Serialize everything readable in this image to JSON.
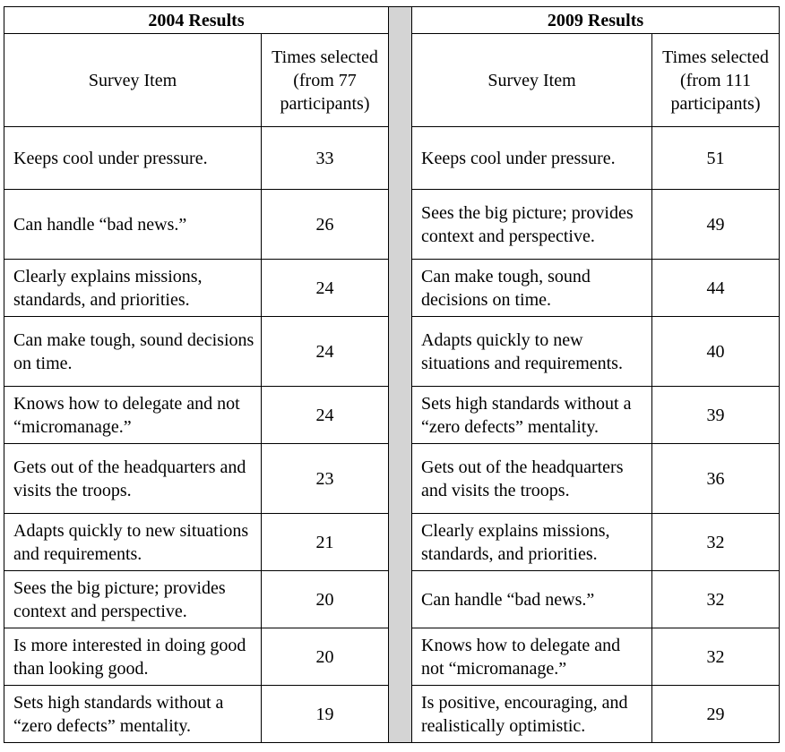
{
  "left": {
    "title": "2004 Results",
    "col_item": "Survey Item",
    "col_count": "Times selected (from 77 participants)",
    "rows": [
      {
        "item": "Keeps cool under pressure.",
        "count": "33"
      },
      {
        "item": "Can handle “bad news.”",
        "count": "26"
      },
      {
        "item": "Clearly explains missions, standards, and priorities.",
        "count": "24"
      },
      {
        "item": "Can make tough, sound decisions on time.",
        "count": "24"
      },
      {
        "item": "Knows how to delegate and not “micromanage.”",
        "count": "24"
      },
      {
        "item": "Gets out of the headquarters and visits the troops.",
        "count": "23"
      },
      {
        "item": "Adapts quickly to new situations and requirements.",
        "count": "21"
      },
      {
        "item": "Sees the big picture; provides context and perspective.",
        "count": "20"
      },
      {
        "item": "Is more interested in doing good than looking good.",
        "count": "20"
      },
      {
        "item": "Sets high standards without a “zero defects” mentality.",
        "count": "19"
      }
    ]
  },
  "right": {
    "title": "2009 Results",
    "col_item": "Survey Item",
    "col_count": "Times selected (from 111 participants)",
    "rows": [
      {
        "item": "Keeps cool under pressure.",
        "count": "51"
      },
      {
        "item": "Sees the big picture; provides context and perspective.",
        "count": "49"
      },
      {
        "item": "Can make tough, sound decisions on time.",
        "count": "44"
      },
      {
        "item": "Adapts quickly to new situations and requirements.",
        "count": "40"
      },
      {
        "item": "Sets high standards without a “zero defects” mentality.",
        "count": "39"
      },
      {
        "item": "Gets out of the headquarters and visits the troops.",
        "count": "36"
      },
      {
        "item": "Clearly explains missions, standards, and priorities.",
        "count": "32"
      },
      {
        "item": "Can handle “bad news.”",
        "count": "32"
      },
      {
        "item": "Knows how to delegate and not “micromanage.”",
        "count": "32"
      },
      {
        "item": "Is positive, encouraging, and realistically optimistic.",
        "count": "29"
      }
    ]
  }
}
